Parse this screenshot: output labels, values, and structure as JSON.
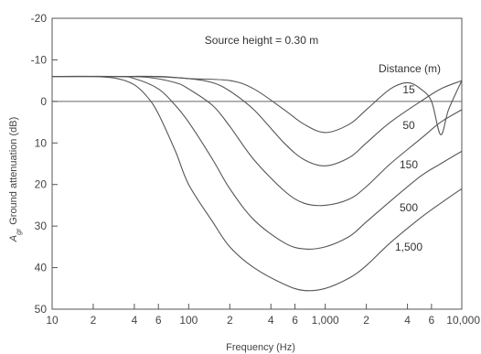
{
  "chart_data": {
    "type": "line",
    "title": "",
    "annotation": "Source height = 0.30 m",
    "xlabel": "Frequency (Hz)",
    "ylabel_prefix": "A",
    "ylabel_subscript": "gr",
    "ylabel_suffix": "Ground attenuation (dB)",
    "x_scale": "log",
    "xlim": [
      10,
      10000
    ],
    "ylim": [
      -20,
      50
    ],
    "y_inverted": true,
    "grid": false,
    "x_ticks": [
      {
        "value": 10,
        "label": "10"
      },
      {
        "value": 20,
        "label": "2"
      },
      {
        "value": 40,
        "label": "4"
      },
      {
        "value": 60,
        "label": "6"
      },
      {
        "value": 100,
        "label": "100"
      },
      {
        "value": 200,
        "label": "2"
      },
      {
        "value": 400,
        "label": "4"
      },
      {
        "value": 600,
        "label": "6"
      },
      {
        "value": 1000,
        "label": "1,000"
      },
      {
        "value": 2000,
        "label": "2"
      },
      {
        "value": 4000,
        "label": "4"
      },
      {
        "value": 6000,
        "label": "6"
      },
      {
        "value": 10000,
        "label": "10,000"
      }
    ],
    "y_ticks": [
      {
        "value": -20,
        "label": "-20"
      },
      {
        "value": -10,
        "label": "-10"
      },
      {
        "value": 0,
        "label": "0"
      },
      {
        "value": 10,
        "label": "10"
      },
      {
        "value": 20,
        "label": "20"
      },
      {
        "value": 30,
        "label": "30"
      },
      {
        "value": 40,
        "label": "40"
      },
      {
        "value": 50,
        "label": "50"
      }
    ],
    "legend_title": "Distance (m)",
    "series": [
      {
        "name": "15",
        "x": [
          10,
          30,
          60,
          100,
          200,
          300,
          500,
          700,
          1000,
          1500,
          2000,
          3000,
          4000,
          5000,
          6000,
          7000,
          8000,
          10000
        ],
        "y": [
          -6,
          -6,
          -6,
          -5.5,
          -5,
          -3,
          2,
          5.5,
          7.5,
          5.5,
          2,
          -3,
          -4.5,
          -3,
          0,
          8,
          2,
          -5
        ]
      },
      {
        "name": "50",
        "x": [
          10,
          30,
          50,
          100,
          150,
          200,
          300,
          500,
          700,
          1000,
          1500,
          2000,
          3000,
          5000,
          7000,
          10000
        ],
        "y": [
          -6,
          -6,
          -6,
          -5.5,
          -4.5,
          -2.5,
          2,
          10,
          14,
          15.5,
          13.5,
          10,
          5,
          0,
          -3,
          -5
        ]
      },
      {
        "name": "150",
        "x": [
          10,
          30,
          50,
          80,
          100,
          150,
          200,
          300,
          500,
          700,
          1000,
          1500,
          2000,
          3000,
          5000,
          7000,
          10000
        ],
        "y": [
          -6,
          -6,
          -5.8,
          -4.5,
          -3,
          1,
          6,
          14,
          21.5,
          24.5,
          25,
          23.5,
          20.5,
          15,
          9,
          5,
          2
        ]
      },
      {
        "name": "500",
        "x": [
          10,
          30,
          40,
          60,
          80,
          100,
          150,
          200,
          300,
          500,
          700,
          1000,
          1500,
          2000,
          3000,
          5000,
          7000,
          10000
        ],
        "y": [
          -6,
          -6,
          -5.5,
          -3,
          1,
          5,
          14,
          21,
          28.5,
          34,
          35.5,
          35,
          32.5,
          29,
          24,
          18,
          15,
          12
        ]
      },
      {
        "name": "1,500",
        "x": [
          10,
          20,
          30,
          40,
          50,
          60,
          80,
          100,
          150,
          200,
          300,
          500,
          700,
          1000,
          1500,
          2000,
          3000,
          5000,
          7000,
          10000
        ],
        "y": [
          -6,
          -6,
          -5.5,
          -4,
          -1,
          3,
          12,
          20,
          29,
          35,
          40,
          44,
          45.5,
          45,
          42.5,
          39.5,
          34,
          28,
          24.5,
          21
        ]
      }
    ]
  }
}
